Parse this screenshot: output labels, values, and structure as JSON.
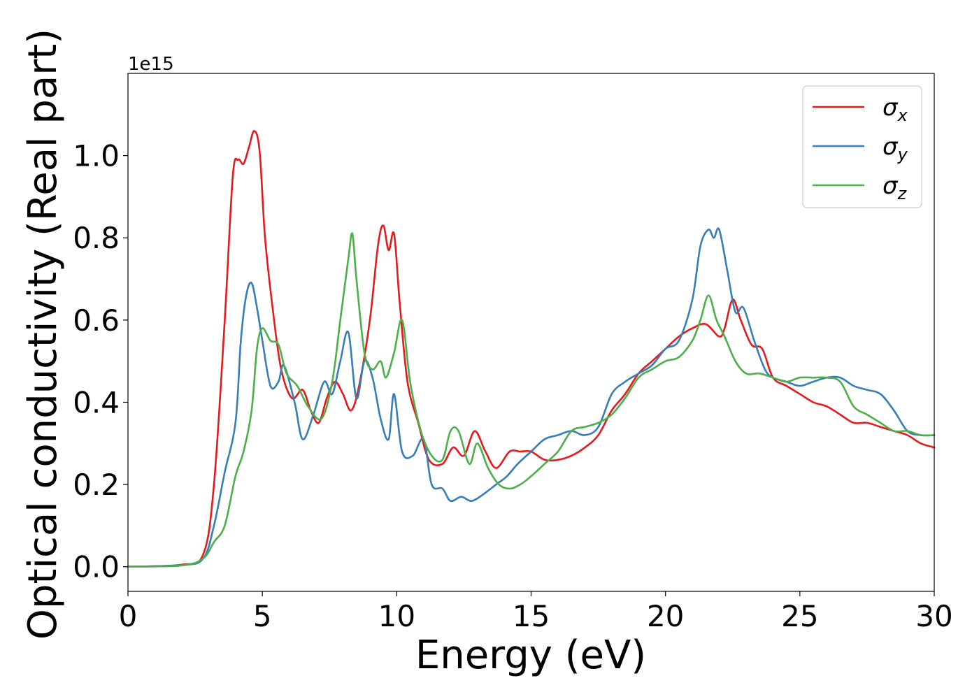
{
  "chart_data": {
    "type": "line",
    "xlabel": "Energy (eV)",
    "ylabel": "Optical conductivity (Real part)",
    "y_scale_label": "1e15",
    "xlim": [
      0,
      30
    ],
    "ylim": [
      -0.06,
      1.2
    ],
    "xticks": [
      0,
      5,
      10,
      15,
      20,
      25,
      30
    ],
    "xtick_labels": [
      "0",
      "5",
      "10",
      "15",
      "20",
      "25",
      "30"
    ],
    "yticks": [
      0.0,
      0.2,
      0.4,
      0.6,
      0.8,
      1.0
    ],
    "ytick_labels": [
      "0.0",
      "0.2",
      "0.4",
      "0.6",
      "0.8",
      "1.0"
    ],
    "grid": false,
    "legend_position": "top-right",
    "series": [
      {
        "name": "σx",
        "symbol": "σ",
        "subscript": "x",
        "color": "#e41a1c",
        "points": [
          [
            0,
            0
          ],
          [
            2,
            0.005
          ],
          [
            2.8,
            0.03
          ],
          [
            3.2,
            0.2
          ],
          [
            3.6,
            0.6
          ],
          [
            3.9,
            0.95
          ],
          [
            4.1,
            0.99
          ],
          [
            4.3,
            0.98
          ],
          [
            4.5,
            1.02
          ],
          [
            4.7,
            1.06
          ],
          [
            4.9,
            1.01
          ],
          [
            5.1,
            0.8
          ],
          [
            5.4,
            0.62
          ],
          [
            5.7,
            0.48
          ],
          [
            6.1,
            0.41
          ],
          [
            6.5,
            0.43
          ],
          [
            6.8,
            0.38
          ],
          [
            7.1,
            0.35
          ],
          [
            7.4,
            0.41
          ],
          [
            7.7,
            0.45
          ],
          [
            8.0,
            0.42
          ],
          [
            8.3,
            0.38
          ],
          [
            8.6,
            0.44
          ],
          [
            9.0,
            0.6
          ],
          [
            9.3,
            0.78
          ],
          [
            9.5,
            0.83
          ],
          [
            9.7,
            0.77
          ],
          [
            9.9,
            0.81
          ],
          [
            10.1,
            0.65
          ],
          [
            10.4,
            0.45
          ],
          [
            10.8,
            0.35
          ],
          [
            11.2,
            0.26
          ],
          [
            11.7,
            0.25
          ],
          [
            12.1,
            0.29
          ],
          [
            12.5,
            0.27
          ],
          [
            12.9,
            0.33
          ],
          [
            13.3,
            0.28
          ],
          [
            13.7,
            0.24
          ],
          [
            14.2,
            0.28
          ],
          [
            14.6,
            0.28
          ],
          [
            15.0,
            0.28
          ],
          [
            15.5,
            0.26
          ],
          [
            16.0,
            0.26
          ],
          [
            16.5,
            0.27
          ],
          [
            17.0,
            0.29
          ],
          [
            17.5,
            0.32
          ],
          [
            18.0,
            0.38
          ],
          [
            18.5,
            0.42
          ],
          [
            19.0,
            0.47
          ],
          [
            19.5,
            0.5
          ],
          [
            20.0,
            0.53
          ],
          [
            20.5,
            0.56
          ],
          [
            21.0,
            0.58
          ],
          [
            21.5,
            0.59
          ],
          [
            22.0,
            0.56
          ],
          [
            22.2,
            0.58
          ],
          [
            22.5,
            0.65
          ],
          [
            22.8,
            0.6
          ],
          [
            23.2,
            0.54
          ],
          [
            23.6,
            0.53
          ],
          [
            24.0,
            0.46
          ],
          [
            24.5,
            0.44
          ],
          [
            25.0,
            0.42
          ],
          [
            25.5,
            0.4
          ],
          [
            26.0,
            0.39
          ],
          [
            26.5,
            0.37
          ],
          [
            27.0,
            0.35
          ],
          [
            27.5,
            0.35
          ],
          [
            28.0,
            0.34
          ],
          [
            28.5,
            0.33
          ],
          [
            29.0,
            0.32
          ],
          [
            29.5,
            0.3
          ],
          [
            30.0,
            0.29
          ]
        ]
      },
      {
        "name": "σy",
        "symbol": "σ",
        "subscript": "y",
        "color": "#377eb8",
        "points": [
          [
            0,
            0
          ],
          [
            2,
            0.004
          ],
          [
            2.8,
            0.02
          ],
          [
            3.2,
            0.1
          ],
          [
            3.6,
            0.23
          ],
          [
            4.0,
            0.35
          ],
          [
            4.2,
            0.55
          ],
          [
            4.4,
            0.66
          ],
          [
            4.6,
            0.69
          ],
          [
            4.8,
            0.63
          ],
          [
            5.0,
            0.55
          ],
          [
            5.3,
            0.44
          ],
          [
            5.6,
            0.45
          ],
          [
            5.8,
            0.49
          ],
          [
            6.2,
            0.4
          ],
          [
            6.5,
            0.31
          ],
          [
            6.9,
            0.37
          ],
          [
            7.3,
            0.45
          ],
          [
            7.6,
            0.42
          ],
          [
            7.9,
            0.5
          ],
          [
            8.2,
            0.57
          ],
          [
            8.5,
            0.41
          ],
          [
            8.8,
            0.5
          ],
          [
            9.1,
            0.46
          ],
          [
            9.4,
            0.36
          ],
          [
            9.7,
            0.31
          ],
          [
            9.9,
            0.42
          ],
          [
            10.2,
            0.28
          ],
          [
            10.6,
            0.27
          ],
          [
            11.0,
            0.31
          ],
          [
            11.3,
            0.2
          ],
          [
            11.7,
            0.19
          ],
          [
            12.0,
            0.16
          ],
          [
            12.4,
            0.17
          ],
          [
            12.8,
            0.16
          ],
          [
            13.3,
            0.18
          ],
          [
            13.7,
            0.2
          ],
          [
            14.1,
            0.22
          ],
          [
            14.5,
            0.25
          ],
          [
            15.0,
            0.28
          ],
          [
            15.5,
            0.31
          ],
          [
            16.0,
            0.32
          ],
          [
            16.5,
            0.33
          ],
          [
            17.0,
            0.32
          ],
          [
            17.5,
            0.34
          ],
          [
            18.0,
            0.42
          ],
          [
            18.5,
            0.45
          ],
          [
            19.0,
            0.47
          ],
          [
            19.5,
            0.49
          ],
          [
            20.0,
            0.53
          ],
          [
            20.5,
            0.55
          ],
          [
            21.0,
            0.65
          ],
          [
            21.3,
            0.78
          ],
          [
            21.6,
            0.82
          ],
          [
            21.8,
            0.8
          ],
          [
            22.0,
            0.82
          ],
          [
            22.3,
            0.72
          ],
          [
            22.6,
            0.62
          ],
          [
            22.9,
            0.63
          ],
          [
            23.3,
            0.55
          ],
          [
            23.7,
            0.48
          ],
          [
            24.0,
            0.46
          ],
          [
            24.5,
            0.45
          ],
          [
            25.0,
            0.44
          ],
          [
            25.5,
            0.45
          ],
          [
            26.0,
            0.46
          ],
          [
            26.5,
            0.46
          ],
          [
            27.0,
            0.44
          ],
          [
            27.5,
            0.43
          ],
          [
            28.0,
            0.42
          ],
          [
            28.5,
            0.38
          ],
          [
            29.0,
            0.33
          ],
          [
            29.5,
            0.32
          ],
          [
            30.0,
            0.32
          ]
        ]
      },
      {
        "name": "σz",
        "symbol": "σ",
        "subscript": "z",
        "color": "#4daf4a",
        "points": [
          [
            0,
            0
          ],
          [
            2,
            0.003
          ],
          [
            2.8,
            0.02
          ],
          [
            3.2,
            0.06
          ],
          [
            3.6,
            0.1
          ],
          [
            4.0,
            0.22
          ],
          [
            4.3,
            0.28
          ],
          [
            4.6,
            0.38
          ],
          [
            4.8,
            0.53
          ],
          [
            5.0,
            0.58
          ],
          [
            5.3,
            0.55
          ],
          [
            5.6,
            0.54
          ],
          [
            5.9,
            0.47
          ],
          [
            6.3,
            0.44
          ],
          [
            6.7,
            0.39
          ],
          [
            7.2,
            0.36
          ],
          [
            7.6,
            0.45
          ],
          [
            7.9,
            0.6
          ],
          [
            8.2,
            0.75
          ],
          [
            8.35,
            0.81
          ],
          [
            8.5,
            0.7
          ],
          [
            8.8,
            0.52
          ],
          [
            9.1,
            0.48
          ],
          [
            9.4,
            0.5
          ],
          [
            9.6,
            0.46
          ],
          [
            9.9,
            0.52
          ],
          [
            10.2,
            0.6
          ],
          [
            10.5,
            0.45
          ],
          [
            10.9,
            0.33
          ],
          [
            11.3,
            0.27
          ],
          [
            11.7,
            0.26
          ],
          [
            12.0,
            0.33
          ],
          [
            12.3,
            0.33
          ],
          [
            12.7,
            0.25
          ],
          [
            13.0,
            0.3
          ],
          [
            13.4,
            0.24
          ],
          [
            13.8,
            0.2
          ],
          [
            14.2,
            0.19
          ],
          [
            14.6,
            0.2
          ],
          [
            15.0,
            0.22
          ],
          [
            15.5,
            0.25
          ],
          [
            16.0,
            0.28
          ],
          [
            16.5,
            0.33
          ],
          [
            17.0,
            0.34
          ],
          [
            17.5,
            0.35
          ],
          [
            18.0,
            0.37
          ],
          [
            18.5,
            0.41
          ],
          [
            19.0,
            0.46
          ],
          [
            19.5,
            0.48
          ],
          [
            20.0,
            0.5
          ],
          [
            20.5,
            0.51
          ],
          [
            21.0,
            0.55
          ],
          [
            21.3,
            0.6
          ],
          [
            21.6,
            0.66
          ],
          [
            21.9,
            0.6
          ],
          [
            22.2,
            0.56
          ],
          [
            22.6,
            0.5
          ],
          [
            23.0,
            0.47
          ],
          [
            23.5,
            0.47
          ],
          [
            24.0,
            0.46
          ],
          [
            24.5,
            0.45
          ],
          [
            25.0,
            0.46
          ],
          [
            25.5,
            0.46
          ],
          [
            26.0,
            0.46
          ],
          [
            26.5,
            0.45
          ],
          [
            27.0,
            0.39
          ],
          [
            27.5,
            0.37
          ],
          [
            28.0,
            0.35
          ],
          [
            28.5,
            0.33
          ],
          [
            29.0,
            0.33
          ],
          [
            29.5,
            0.32
          ],
          [
            30.0,
            0.32
          ]
        ]
      }
    ]
  }
}
